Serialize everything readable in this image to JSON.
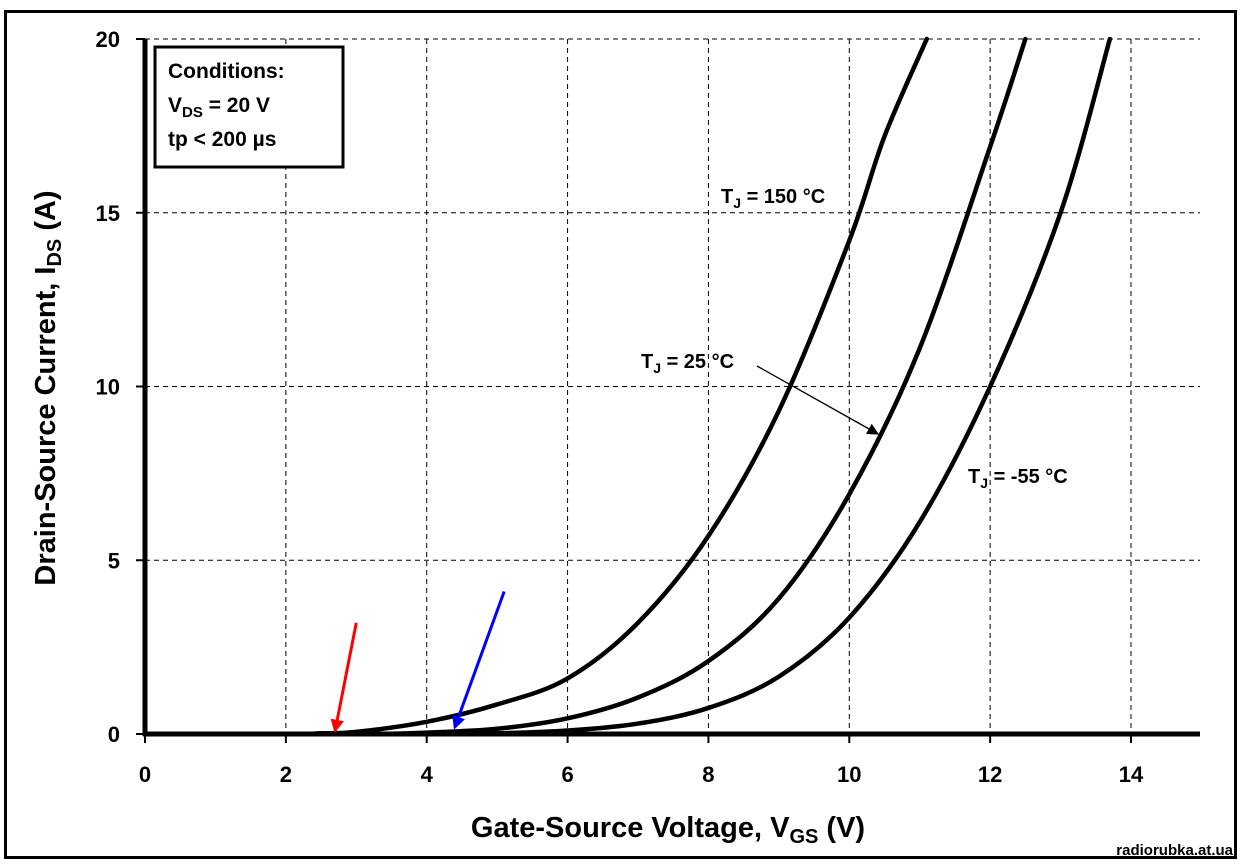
{
  "chart_data": {
    "type": "line",
    "xlabel": {
      "main": "Gate-Source Voltage, V",
      "sub": "GS",
      "unit": " (V)"
    },
    "ylabel": {
      "main": "Drain-Source Current, I",
      "sub": "DS",
      "unit": " (A)"
    },
    "xlim": [
      0,
      15
    ],
    "ylim": [
      0,
      20
    ],
    "xticks": [
      0,
      2,
      4,
      6,
      8,
      10,
      12,
      14
    ],
    "yticks": [
      0,
      5,
      10,
      15,
      20
    ],
    "x_tick_labels": [
      "0",
      "2",
      "4",
      "6",
      "8",
      "10",
      "12",
      "14"
    ],
    "y_tick_labels": [
      "0",
      "5",
      "10",
      "15",
      "20"
    ],
    "grid": true,
    "series": [
      {
        "name": "T_J = 150 °C",
        "label": {
          "pre": "T",
          "sub": "J",
          "post": " = 150 °C"
        },
        "points": [
          [
            0,
            0
          ],
          [
            2,
            0.0
          ],
          [
            2.5,
            0.02
          ],
          [
            3,
            0.06
          ],
          [
            4,
            0.35
          ],
          [
            5,
            0.85
          ],
          [
            6,
            1.6
          ],
          [
            7,
            3.2
          ],
          [
            8,
            5.7
          ],
          [
            9,
            9.3
          ],
          [
            10,
            14.2
          ],
          [
            10.5,
            17.2
          ],
          [
            11.1,
            20
          ]
        ]
      },
      {
        "name": "T_J = 25 °C",
        "label": {
          "pre": "T",
          "sub": "J",
          "post": " = 25 °C"
        },
        "points": [
          [
            0,
            0
          ],
          [
            3,
            0.0
          ],
          [
            4,
            0.04
          ],
          [
            5,
            0.15
          ],
          [
            6,
            0.45
          ],
          [
            7,
            1.05
          ],
          [
            8,
            2.1
          ],
          [
            9,
            3.9
          ],
          [
            10,
            6.9
          ],
          [
            11,
            11.1
          ],
          [
            12,
            16.9
          ],
          [
            12.5,
            20
          ]
        ]
      },
      {
        "name": "T_J = -55 °C",
        "label": {
          "pre": "T",
          "sub": "J",
          "post": " = -55 °C"
        },
        "points": [
          [
            0,
            0
          ],
          [
            4,
            0.0
          ],
          [
            5,
            0.02
          ],
          [
            6,
            0.1
          ],
          [
            7,
            0.3
          ],
          [
            8,
            0.75
          ],
          [
            9,
            1.65
          ],
          [
            10,
            3.35
          ],
          [
            11,
            6.1
          ],
          [
            12,
            10.0
          ],
          [
            13,
            15.0
          ],
          [
            13.7,
            20
          ]
        ]
      }
    ],
    "conditions": {
      "title": "Conditions:",
      "vds": {
        "pre": "V",
        "sub": "DS",
        "post": " = 20 V"
      },
      "tp": "tp < 200 µs"
    },
    "markers": [
      {
        "name": "red-arrow",
        "color": "#ff0000",
        "tip": [
          2.7,
          0.1
        ],
        "tail": [
          3.0,
          3.2
        ]
      },
      {
        "name": "blue-arrow",
        "color": "#0000ff",
        "tip": [
          4.4,
          0.2
        ],
        "tail": [
          5.1,
          4.1
        ]
      }
    ]
  },
  "watermark": "radiorubka.at.ua"
}
